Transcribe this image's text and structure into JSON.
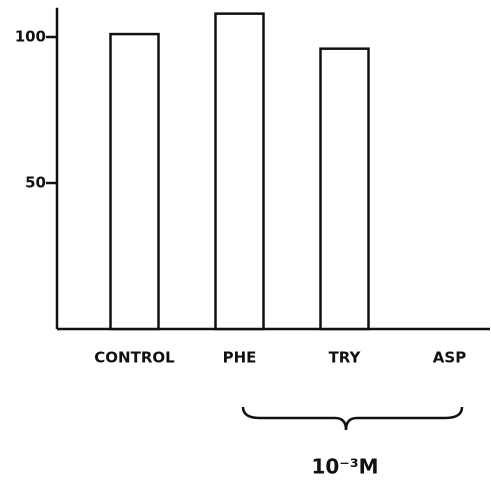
{
  "chart_data": {
    "type": "bar",
    "categories": [
      "CONTROL",
      "PHE",
      "TRY",
      "ASP"
    ],
    "values": [
      101,
      108,
      96,
      0
    ],
    "color": "#ffffff",
    "ylim": [
      0,
      110
    ],
    "yticks": [
      50,
      100
    ],
    "grid": false,
    "annotations": [
      "10⁻³M"
    ]
  }
}
